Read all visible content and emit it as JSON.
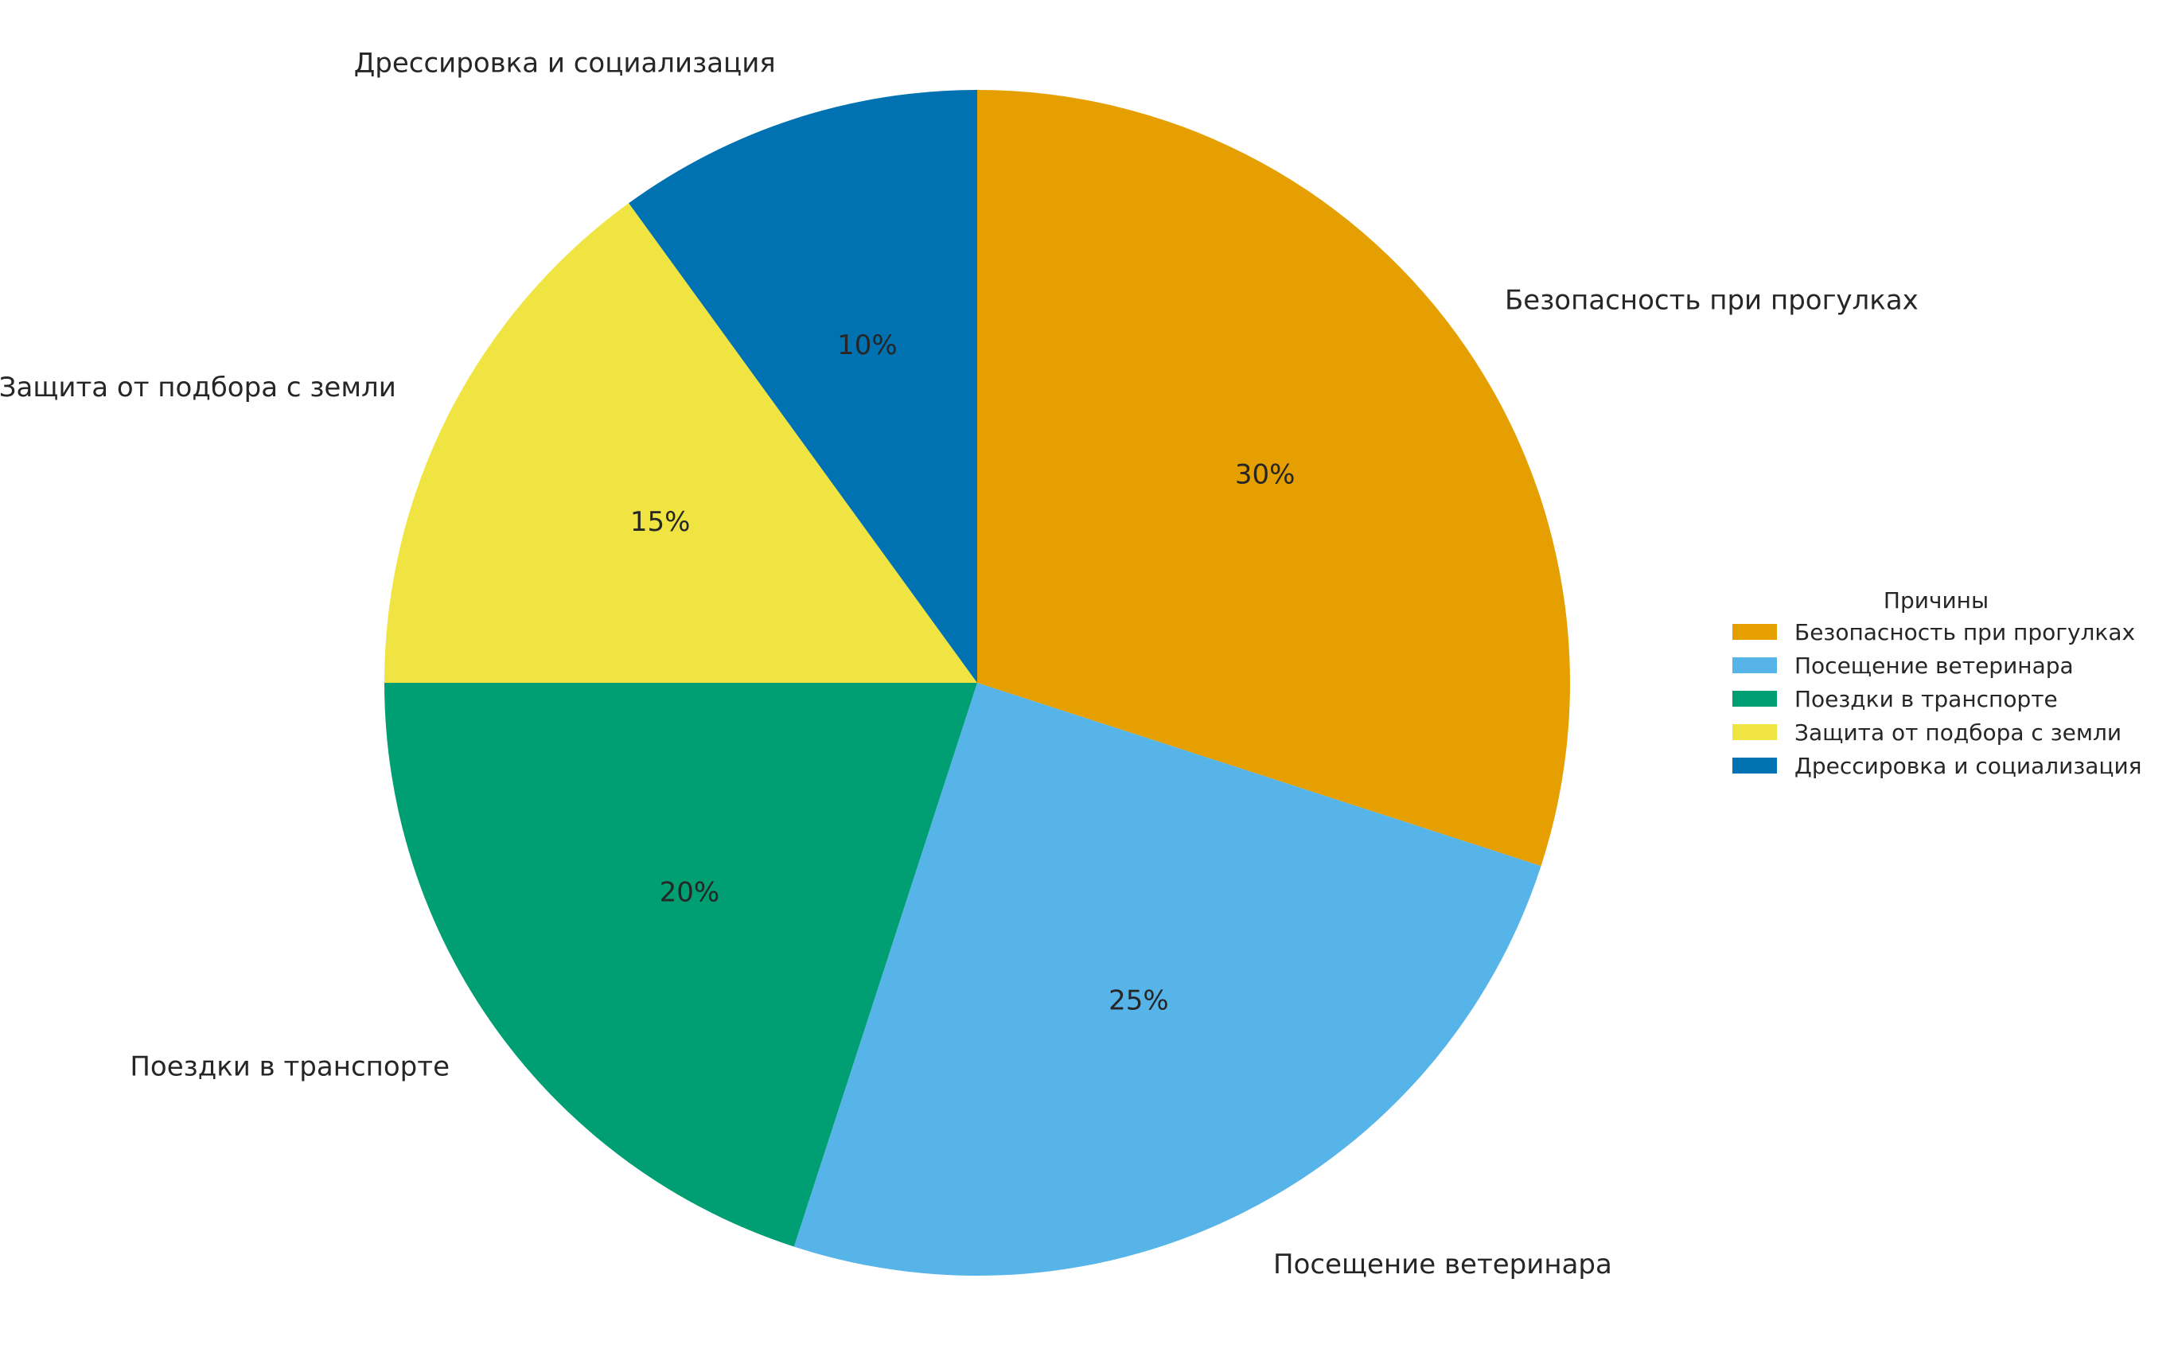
{
  "chart_data": {
    "type": "pie",
    "title": "",
    "start_angle_deg": 90,
    "direction": "clockwise",
    "categories": [
      "Безопасность при прогулках",
      "Посещение ветеринара",
      "Поездки в транспорте",
      "Защита от подбора с земли",
      "Дрессировка и социализация"
    ],
    "values": [
      30,
      25,
      20,
      15,
      10
    ],
    "value_labels": [
      "30%",
      "25%",
      "20%",
      "15%",
      "10%"
    ],
    "colors": [
      "#E69F00",
      "#56B4E9",
      "#009E73",
      "#F0E442",
      "#0072B2"
    ],
    "legend": {
      "title": "Причины",
      "position": "right",
      "entries": [
        "Безопасность при прогулках",
        "Посещение ветеринара",
        "Поездки в транспорте",
        "Защита от подбора с земли",
        "Дрессировка и социализация"
      ]
    }
  }
}
